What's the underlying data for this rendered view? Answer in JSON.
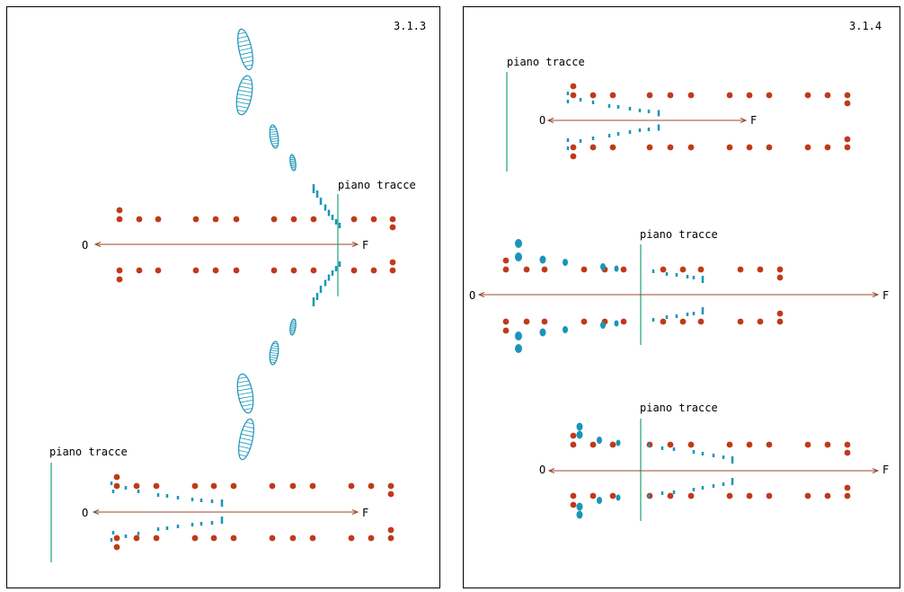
{
  "colors": {
    "dot": "#c0391b",
    "trace": "#1a95b8",
    "plane": "#1aa37a",
    "axis": "#9a4a2a",
    "frame": "#000000"
  },
  "panel_left": {
    "number": "3.1.3",
    "diagram_top": {
      "plane_label": "piano tracce",
      "start_label": "O",
      "end_label": "F"
    },
    "diagram_bottom": {
      "plane_label": "piano tracce",
      "start_label": "O",
      "end_label": "F"
    }
  },
  "panel_right": {
    "number": "3.1.4",
    "diagram_1": {
      "plane_label": "piano tracce",
      "start_label": "O",
      "end_label": "F"
    },
    "diagram_2": {
      "plane_label": "piano tracce",
      "start_label": "O",
      "end_label": "F"
    },
    "diagram_3": {
      "plane_label": "piano tracce",
      "start_label": "O",
      "end_label": "F"
    }
  }
}
